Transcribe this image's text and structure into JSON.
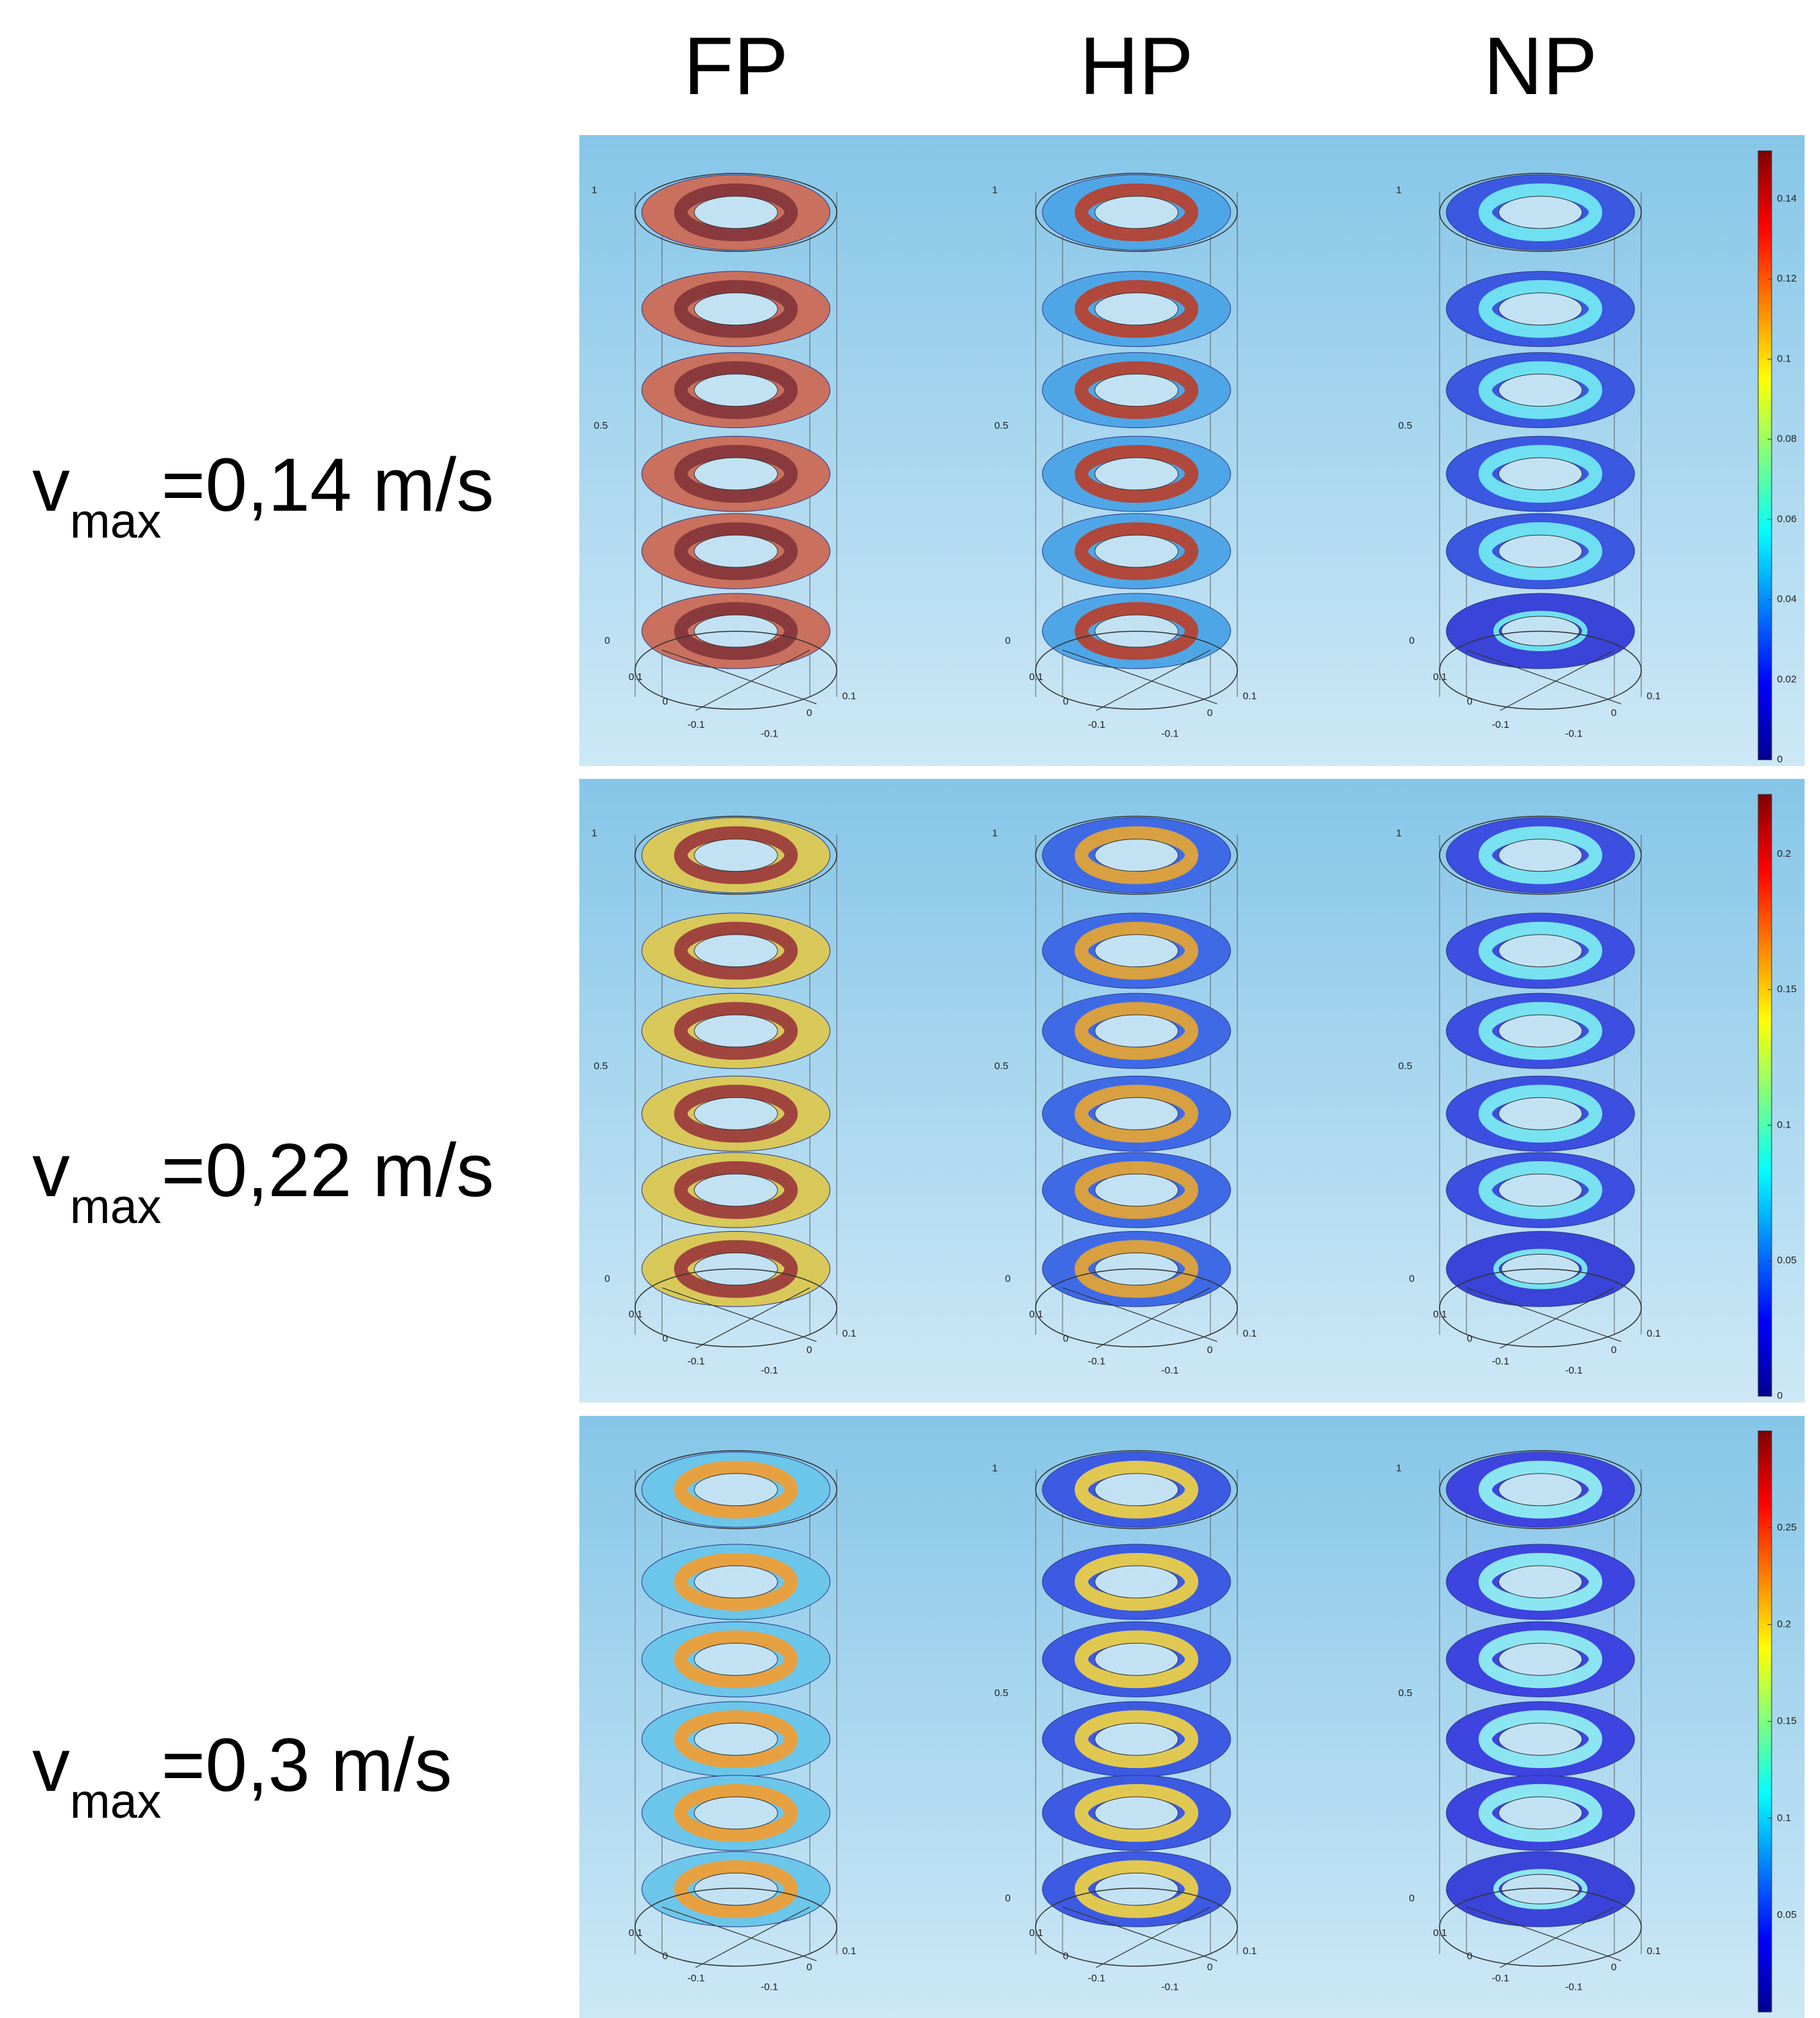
{
  "columns": [
    "FP",
    "HP",
    "NP"
  ],
  "rows": [
    {
      "label": {
        "v": "v",
        "sub": "max",
        "value": "=0,14 m/s"
      },
      "colorbar": {
        "range": [
          0,
          0.152
        ],
        "ticks": [
          0,
          0.02,
          0.04,
          0.06,
          0.08,
          0.1,
          0.12,
          0.14
        ]
      },
      "panels": [
        {
          "axis_labels": [
            "1",
            "0.5",
            "0",
            "0.1",
            "0",
            "-0.1",
            "-0.1",
            "0",
            "0.1"
          ]
        },
        {
          "axis_labels": [
            "1",
            "0.5",
            "0",
            "0.1",
            "0",
            "-0.1",
            "-0.1",
            "0",
            "0.1"
          ]
        },
        {
          "axis_labels": [
            "1",
            "0.5",
            "0",
            "0.1",
            "0",
            "-0.1",
            "-0.1",
            "0",
            "0.1"
          ]
        }
      ]
    },
    {
      "label": {
        "v": "v",
        "sub": "max",
        "value": "=0,22 m/s"
      },
      "colorbar": {
        "range": [
          0,
          0.222
        ],
        "ticks": [
          0,
          0.05,
          0.1,
          0.15,
          0.2
        ]
      },
      "panels": [
        {
          "axis_labels": [
            "1",
            "0.5",
            "0",
            "0.1",
            "0",
            "-0.1",
            "-0.1",
            "0",
            "0.1"
          ]
        },
        {
          "axis_labels": [
            "1",
            "0.5",
            "0",
            "0.1",
            "0",
            "-0.1",
            "-0.1",
            "0",
            "0.1"
          ]
        },
        {
          "axis_labels": [
            "1",
            "0.5",
            "0",
            "0.1",
            "0",
            "-0.1",
            "-0.1",
            "0",
            "0.1"
          ]
        }
      ]
    },
    {
      "label": {
        "v": "v",
        "sub": "max",
        "value": "=0,3 m/s"
      },
      "colorbar": {
        "range": [
          0,
          0.3
        ],
        "ticks": [
          0.05,
          0.1,
          0.15,
          0.2,
          0.25
        ]
      },
      "panels": [
        {
          "axis_labels": [
            "0.1",
            "0",
            "-0.1",
            "-0.1",
            "0",
            "0.1"
          ]
        },
        {
          "axis_labels": [
            "1",
            "0.5",
            "0",
            "0.1",
            "0",
            "-0.1",
            "-0.1",
            "0",
            "0.1"
          ]
        },
        {
          "axis_labels": [
            "1",
            "0.5",
            "0",
            "0.1",
            "0",
            "-0.1",
            "-0.1",
            "0",
            "0.1"
          ]
        }
      ]
    }
  ]
}
